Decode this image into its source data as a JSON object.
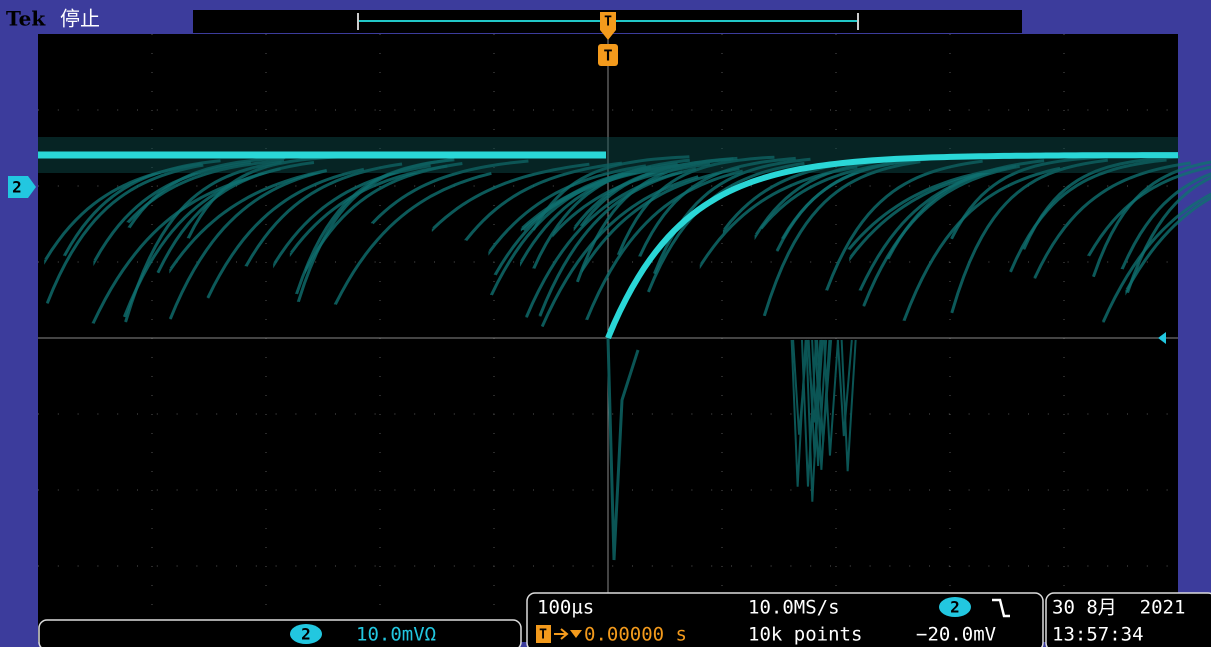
{
  "header": {
    "brand": "Tek",
    "status": "停止"
  },
  "markers": {
    "channel": "2",
    "trigger": "T"
  },
  "status_bar": {
    "channel": {
      "number": "2",
      "scale": "10.0mVΩ"
    },
    "timebase": {
      "scale": "100µs",
      "sample_rate": "10.0MS/s",
      "delay": "0.00000 s",
      "record_length": "10k points"
    },
    "trigger": {
      "channel": "2",
      "level": "−20.0mV"
    },
    "datetime": {
      "date": "30 8月  2021",
      "time": "13:57:34"
    }
  }
}
